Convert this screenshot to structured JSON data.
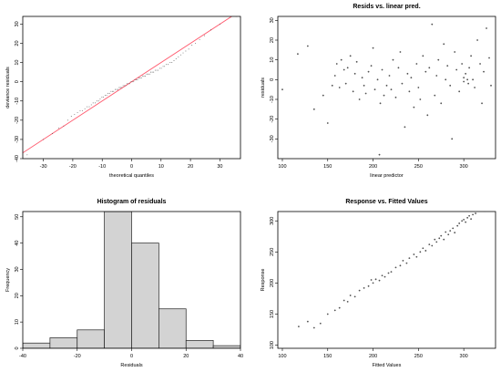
{
  "chart_data": [
    {
      "type": "scatter",
      "title": "",
      "xlabel": "theoretical quantiles",
      "ylabel": "deviance residuals",
      "xlim": [
        -37,
        37
      ],
      "ylim": [
        -40,
        34
      ],
      "xticks": [
        -30,
        -20,
        -10,
        0,
        10,
        20,
        30
      ],
      "yticks": [
        -40,
        -30,
        -20,
        -10,
        0,
        10,
        20,
        30
      ],
      "reference_line": {
        "slope": 1,
        "intercept": 0,
        "color": "#ff5a6e"
      },
      "x": [
        -35.5,
        -30.0,
        -26.9,
        -24.8,
        -23.1,
        -21.7,
        -20.5,
        -19.4,
        -18.4,
        -17.5,
        -16.7,
        -15.9,
        -15.1,
        -14.4,
        -13.7,
        -13.1,
        -12.4,
        -11.8,
        -11.2,
        -10.7,
        -10.1,
        -9.6,
        -9.0,
        -8.5,
        -8.0,
        -7.5,
        -7.0,
        -6.5,
        -6.1,
        -5.6,
        -5.1,
        -4.7,
        -4.2,
        -3.8,
        -3.3,
        -2.9,
        -2.4,
        -2.0,
        -1.6,
        -1.1,
        -0.7,
        -0.2,
        0.2,
        0.7,
        1.1,
        1.6,
        2.0,
        2.4,
        2.9,
        3.3,
        3.8,
        4.2,
        4.7,
        5.1,
        5.6,
        6.1,
        6.5,
        7.0,
        7.5,
        8.0,
        8.5,
        9.0,
        9.6,
        10.1,
        10.7,
        11.2,
        11.8,
        12.4,
        13.1,
        13.7,
        14.4,
        15.1,
        15.9,
        16.7,
        17.5,
        18.4,
        19.4,
        20.5,
        21.7,
        23.1,
        24.8,
        26.9,
        30.0,
        35.5
      ],
      "y": [
        -38,
        -30,
        -27,
        -24,
        -23,
        -20,
        -18,
        -17,
        -16,
        -15,
        -15,
        -14,
        -13,
        -13,
        -12,
        -11,
        -11,
        -10,
        -10,
        -9,
        -8,
        -8,
        -7,
        -7,
        -6,
        -6,
        -5,
        -5,
        -5,
        -4,
        -4,
        -4,
        -3,
        -3,
        -3,
        -2,
        -2,
        -2,
        -1,
        -1,
        -1,
        0,
        0,
        0,
        1,
        1,
        1,
        2,
        2,
        2,
        3,
        3,
        3,
        4,
        4,
        4,
        5,
        5,
        5,
        6,
        6,
        6,
        7,
        7,
        8,
        8,
        9,
        9,
        10,
        10,
        11,
        12,
        13,
        14,
        15,
        16,
        17,
        19,
        20,
        22,
        24,
        27,
        30,
        34
      ]
    },
    {
      "type": "scatter",
      "title": "Resids vs. linear pred.",
      "xlabel": "linear predictor",
      "ylabel": "residuals",
      "xlim": [
        95,
        335
      ],
      "ylim": [
        -40,
        32
      ],
      "xticks": [
        100,
        150,
        200,
        250,
        300
      ],
      "yticks": [
        -30,
        -20,
        -10,
        0,
        10,
        20,
        30
      ],
      "x": [
        100,
        117,
        128,
        135,
        145,
        150,
        155,
        158,
        160,
        163,
        165,
        168,
        170,
        172,
        175,
        178,
        180,
        182,
        185,
        188,
        190,
        192,
        195,
        198,
        200,
        202,
        205,
        207,
        208,
        210,
        212,
        215,
        218,
        220,
        222,
        225,
        228,
        230,
        232,
        235,
        238,
        240,
        242,
        245,
        248,
        250,
        252,
        255,
        258,
        260,
        262,
        265,
        268,
        270,
        272,
        275,
        278,
        280,
        282,
        285,
        287,
        290,
        292,
        295,
        298,
        300,
        300,
        302,
        304,
        305,
        306,
        308,
        310,
        312,
        315,
        318,
        320,
        322,
        325,
        328,
        330
      ],
      "y": [
        -5,
        13,
        17,
        -15,
        -8,
        -22,
        -3,
        2,
        8,
        -4,
        10,
        5,
        -2,
        6,
        12,
        -6,
        3,
        9,
        -10,
        1,
        -3,
        -7,
        4,
        7,
        16,
        -5,
        0,
        -38,
        -12,
        5,
        -8,
        -3,
        2,
        -5,
        10,
        -9,
        6,
        14,
        -2,
        -24,
        3,
        -6,
        1,
        -14,
        8,
        -4,
        -10,
        12,
        4,
        -18,
        6,
        28,
        -8,
        2,
        10,
        -12,
        18,
        0,
        7,
        -3,
        -30,
        14,
        5,
        -6,
        8,
        1,
        -1,
        3,
        0,
        -2,
        6,
        12,
        0,
        -4,
        20,
        8,
        -12,
        4,
        26,
        11,
        -3
      ]
    },
    {
      "type": "bar",
      "title": "Histogram of residuals",
      "xlabel": "Residuals",
      "ylabel": "Frequency",
      "bin_edges": [
        -40,
        -30,
        -20,
        -10,
        0,
        10,
        20,
        30,
        40
      ],
      "values": [
        2,
        4,
        7,
        52,
        40,
        15,
        3,
        1
      ],
      "xlim": [
        -40,
        40
      ],
      "ylim": [
        0,
        52
      ],
      "xticks": [
        -40,
        -20,
        0,
        20,
        40
      ],
      "yticks": [
        0,
        10,
        20,
        30,
        40,
        50
      ]
    },
    {
      "type": "scatter",
      "title": "Response vs. Fitted Values",
      "xlabel": "Fitted Values",
      "ylabel": "Response",
      "xlim": [
        95,
        335
      ],
      "ylim": [
        95,
        315
      ],
      "xticks": [
        100,
        150,
        200,
        250,
        300
      ],
      "yticks": [
        100,
        150,
        200,
        250,
        300
      ],
      "x": [
        100,
        118,
        128,
        135,
        142,
        150,
        158,
        163,
        168,
        172,
        175,
        180,
        185,
        190,
        195,
        198,
        200,
        203,
        207,
        210,
        213,
        217,
        220,
        225,
        230,
        233,
        237,
        240,
        245,
        248,
        252,
        255,
        258,
        262,
        265,
        268,
        270,
        273,
        275,
        278,
        280,
        283,
        285,
        288,
        290,
        293,
        295,
        298,
        300,
        302,
        304,
        306,
        308,
        310,
        313,
        316,
        320,
        323,
        326,
        330
      ],
      "y": [
        92,
        130,
        138,
        128,
        135,
        150,
        156,
        160,
        172,
        170,
        180,
        178,
        188,
        192,
        195,
        205,
        200,
        206,
        204,
        212,
        210,
        216,
        218,
        225,
        228,
        236,
        232,
        240,
        246,
        242,
        250,
        256,
        252,
        262,
        260,
        270,
        266,
        272,
        276,
        270,
        282,
        278,
        284,
        288,
        281,
        292,
        296,
        300,
        302,
        298,
        305,
        308,
        303,
        310,
        312,
        318,
        320,
        316,
        325,
        330
      ]
    }
  ]
}
